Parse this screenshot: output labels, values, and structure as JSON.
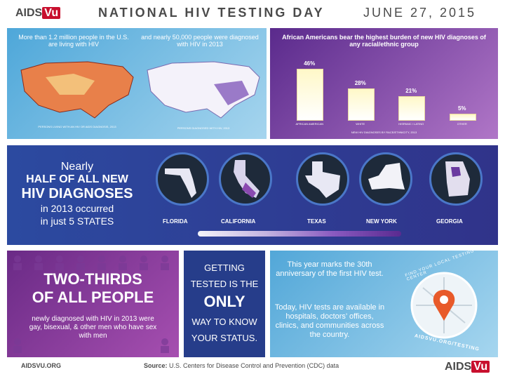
{
  "header": {
    "title": "NATIONAL HIV TESTING DAY",
    "date": "JUNE 27, 2015",
    "logo": {
      "prefix": "AIDS",
      "suffix": "Vu"
    }
  },
  "panel1": {
    "left_caption": "More than 1.2 million people in the U.S. are living with HIV",
    "right_caption": "and nearly 50,000 people were diagnosed with HIV in 2013",
    "left_label": "PERSONS LIVING WITH AN HIV OR AIDS DIAGNOSIS, 2013",
    "right_label": "PERSONS DIAGNOSED WITH HIV, 2013"
  },
  "panel2": {
    "title": "African Americans bear the highest burden of new HIV diagnoses of any racial/ethnic group",
    "footer": "NEW HIV DIAGNOSES BY RACE/ETHNICITY, 2013"
  },
  "chart_data": {
    "type": "bar",
    "categories": [
      "AFRICAN AMERICAN",
      "WHITE",
      "HISPANIC / LATINO",
      "OTHER"
    ],
    "values": [
      46,
      28,
      21,
      5
    ],
    "value_labels": [
      "46%",
      "28%",
      "21%",
      "5%"
    ],
    "ylim": [
      0,
      50
    ],
    "title": "African Americans bear the highest burden of new HIV diagnoses of any racial/ethnic group",
    "xlabel": "NEW HIV DIAGNOSES BY RACE/ETHNICITY, 2013",
    "ylabel": ""
  },
  "panel3": {
    "line1": "Nearly",
    "line2": "HALF OF ALL NEW",
    "line3": "HIV DIAGNOSES",
    "line4": "in 2013 occurred",
    "line5": "in just 5 STATES",
    "states": [
      "FLORIDA",
      "CALIFORNIA",
      "TEXAS",
      "NEW YORK",
      "GEORGIA"
    ]
  },
  "panel4": {
    "title1": "TWO-THIRDS",
    "title2": "OF ALL PEOPLE",
    "body": "newly diagnosed with HIV in 2013 were gay, bisexual, & other men who have sex with men"
  },
  "panel5": {
    "line1": "GETTING",
    "line2": "TESTED IS THE",
    "line3": "ONLY",
    "line4": "WAY TO KNOW",
    "line5": "YOUR STATUS."
  },
  "panel6": {
    "p1": "This year marks the 30th anniversary of the first HIV test.",
    "p2": "Today, HIV tests are available in hospitals, doctors’ offices, clinics, and communities across the country.",
    "arc_top": "FIND YOUR LOCAL TESTING CENTER",
    "arc_bottom": "AIDSVU.ORG/TESTING"
  },
  "footer": {
    "left": "AIDSVU.ORG",
    "source_label": "Source:",
    "source": "U.S. Centers for Disease Control and Prevention (CDC) data"
  },
  "colors": {
    "accent_red": "#c8102e",
    "purple": "#6a2a86",
    "blue": "#263d8a",
    "sky": "#52a7d8"
  }
}
